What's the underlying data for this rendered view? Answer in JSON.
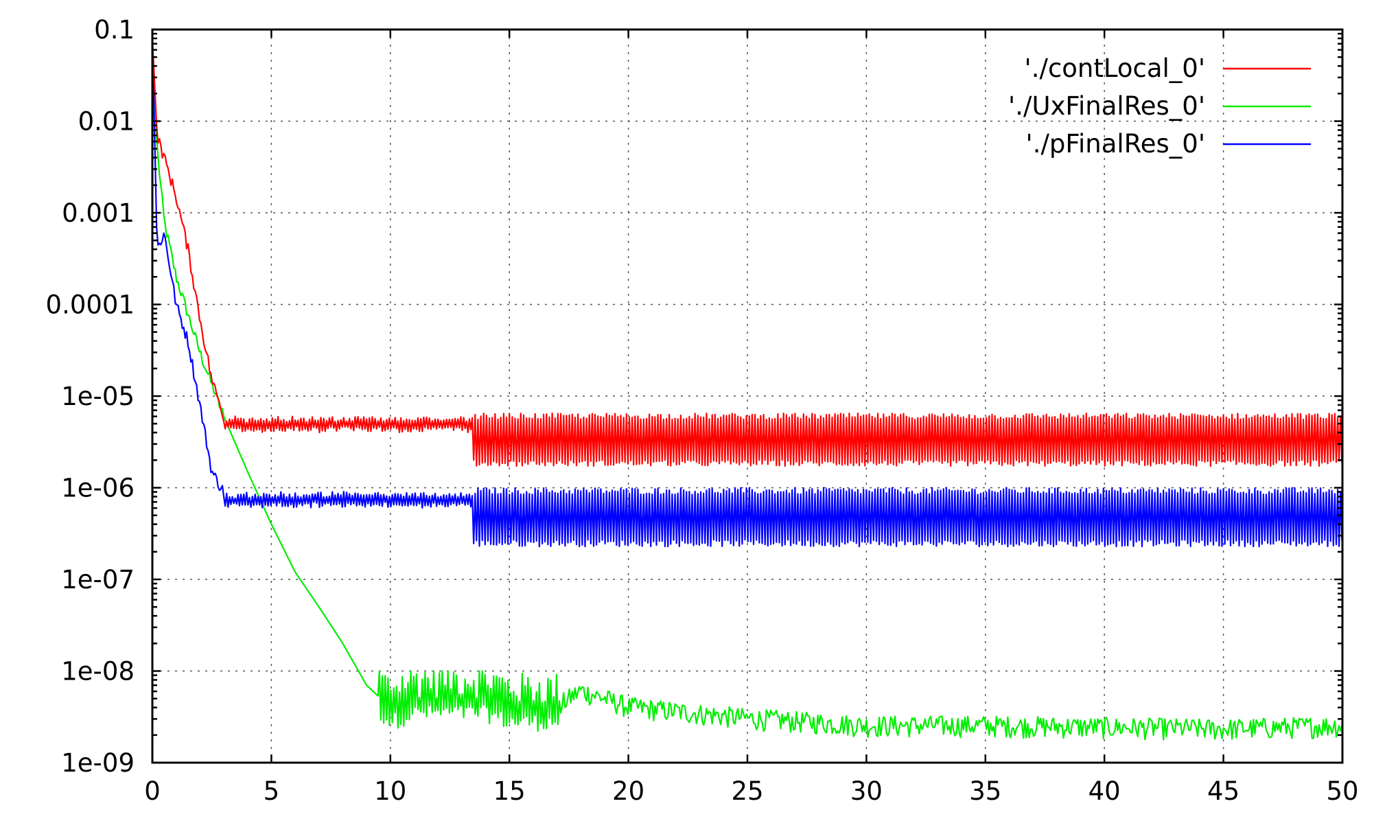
{
  "chart_data": {
    "type": "line",
    "title": "",
    "xlabel": "",
    "ylabel": "",
    "xlim": [
      0,
      50
    ],
    "ylim": [
      1e-09,
      0.1
    ],
    "y_scale": "log",
    "grid": true,
    "legend_position": "top-right",
    "x_ticks": [
      "0",
      "5",
      "10",
      "15",
      "20",
      "25",
      "30",
      "35",
      "40",
      "45",
      "50"
    ],
    "y_ticks": [
      "1e-09",
      "1e-08",
      "1e-07",
      "1e-06",
      "1e-05",
      "0.0001",
      "0.001",
      "0.01",
      "0.1"
    ],
    "series": [
      {
        "name": "'./contLocal_0'",
        "color": "#ff0000",
        "x": [
          0,
          0.2,
          0.5,
          1,
          1.5,
          2,
          2.5,
          3,
          3.5,
          4,
          5,
          6,
          7,
          8,
          9,
          10,
          11,
          12,
          13,
          14,
          15,
          20,
          25,
          30,
          35,
          40,
          45,
          50
        ],
        "y": [
          0.08,
          0.007,
          0.004,
          0.0015,
          0.0004,
          7e-05,
          1.5e-05,
          6e-06,
          6e-06,
          5.5e-06,
          5.5e-06,
          5.2e-06,
          5e-06,
          5e-06,
          5e-06,
          4.8e-06,
          4.7e-06,
          4.5e-06,
          4.5e-06,
          4.2e-06,
          3.5e-06,
          3.3e-06,
          3.3e-06,
          3.3e-06,
          3.3e-06,
          3.3e-06,
          3.3e-06,
          3.3e-06
        ],
        "oscillation_band": [
          {
            "from": 3,
            "to": 13.5,
            "low": 4e-06,
            "high": 6e-06
          },
          {
            "from": 13.5,
            "to": 50,
            "low": 1.8e-06,
            "high": 6.2e-06
          }
        ]
      },
      {
        "name": "'./UxFinalRes_0'",
        "color": "#00ee00",
        "x": [
          0,
          0.2,
          0.5,
          1,
          2,
          3,
          4,
          5,
          6,
          7,
          8,
          9,
          10,
          11,
          12,
          13,
          14,
          15,
          16,
          17,
          18,
          20,
          25,
          30,
          35,
          40,
          45,
          50
        ],
        "y": [
          0.07,
          0.005,
          0.0008,
          0.0002,
          3e-05,
          6e-06,
          1.5e-06,
          4e-07,
          1.2e-07,
          5e-08,
          2e-08,
          7e-09,
          4e-09,
          5e-09,
          5e-09,
          5e-09,
          5e-09,
          4e-09,
          4e-09,
          4e-09,
          6e-09,
          4e-09,
          3e-09,
          2.5e-09,
          2.5e-09,
          2.4e-09,
          2.3e-09,
          2.5e-09
        ]
      },
      {
        "name": "'./pFinalRes_0'",
        "color": "#0000ff",
        "x": [
          0,
          0.2,
          0.5,
          1,
          1.5,
          2,
          2.5,
          3,
          3.5,
          4,
          5,
          6,
          7,
          8,
          9,
          10,
          11,
          12,
          13,
          14,
          15,
          20,
          25,
          30,
          35,
          40,
          45,
          50
        ],
        "y": [
          0.09,
          0.0004,
          0.0006,
          0.0001,
          4e-05,
          8e-06,
          1.5e-06,
          9e-07,
          9e-07,
          8e-07,
          8.5e-07,
          8e-07,
          7.5e-07,
          7.5e-07,
          7.5e-07,
          7e-07,
          7e-07,
          6.8e-07,
          6.6e-07,
          6.2e-07,
          5.2e-07,
          5e-07,
          5e-07,
          5e-07,
          5e-07,
          5e-07,
          5e-07,
          5e-07
        ],
        "oscillation_band": [
          {
            "from": 3,
            "to": 13.5,
            "low": 6e-07,
            "high": 9e-07
          },
          {
            "from": 13.5,
            "to": 50,
            "low": 2.4e-07,
            "high": 9.5e-07
          }
        ]
      }
    ]
  }
}
